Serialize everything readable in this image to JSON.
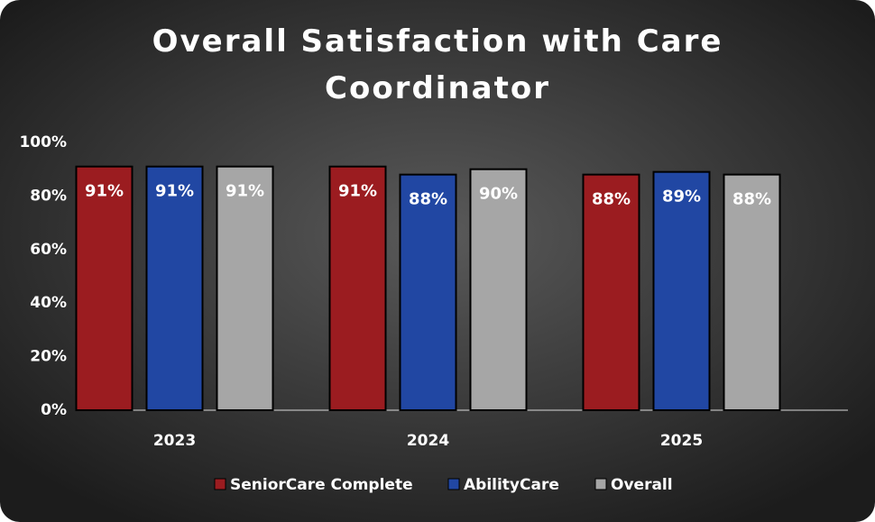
{
  "chart_data": {
    "type": "bar",
    "title": "Overall Satisfaction with Care Coordinator",
    "categories": [
      "2023",
      "2024",
      "2025"
    ],
    "series": [
      {
        "name": "SeniorCare Complete",
        "color": "#9b1c20",
        "values": [
          91,
          91,
          88
        ],
        "value_labels": [
          "91%",
          "91%",
          "88%"
        ]
      },
      {
        "name": "AbilityCare",
        "color": "#2147a3",
        "values": [
          91,
          88,
          89
        ],
        "value_labels": [
          "91%",
          "88%",
          "89%"
        ]
      },
      {
        "name": "Overall",
        "color": "#a6a6a6",
        "values": [
          91,
          90,
          88
        ],
        "value_labels": [
          "91%",
          "90%",
          "88%"
        ]
      }
    ],
    "ylim": [
      0,
      100
    ],
    "yticks": [
      {
        "value": 0,
        "label": "0%"
      },
      {
        "value": 20,
        "label": "20%"
      },
      {
        "value": 40,
        "label": "40%"
      },
      {
        "value": 60,
        "label": "60%"
      },
      {
        "value": 80,
        "label": "80%"
      },
      {
        "value": 100,
        "label": "100%"
      }
    ],
    "grid": false
  }
}
